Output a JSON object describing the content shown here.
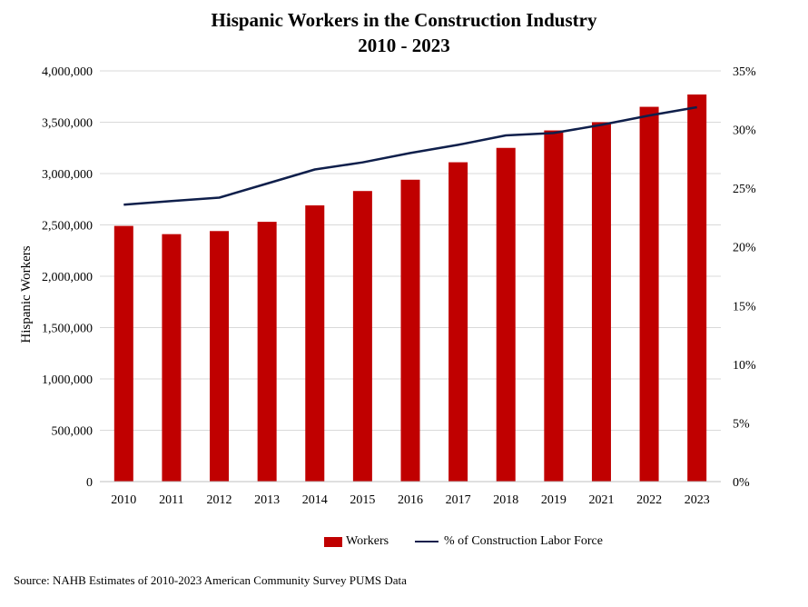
{
  "chart_data": {
    "type": "bar",
    "title": "Hispanic Workers in the Construction Industry",
    "subtitle": "2010 - 2023",
    "ylabel": "Hispanic Workers",
    "ylim": [
      0,
      4000000
    ],
    "y_ticks": [
      "0",
      "500,000",
      "1,000,000",
      "1,500,000",
      "2,000,000",
      "2,500,000",
      "3,000,000",
      "3,500,000",
      "4,000,000"
    ],
    "y2lim": [
      0,
      35
    ],
    "y2_ticks": [
      "0%",
      "5%",
      "10%",
      "15%",
      "20%",
      "25%",
      "30%",
      "35%"
    ],
    "categories": [
      "2010",
      "2011",
      "2012",
      "2013",
      "2014",
      "2015",
      "2016",
      "2017",
      "2018",
      "2019",
      "2021",
      "2022",
      "2023"
    ],
    "series": [
      {
        "name": "Workers",
        "type": "bar",
        "axis": "left",
        "color": "#c00000",
        "values": [
          2490000,
          2410000,
          2440000,
          2530000,
          2690000,
          2830000,
          2940000,
          3110000,
          3250000,
          3420000,
          3500000,
          3650000,
          3770000
        ]
      },
      {
        "name": "% of Construction Labor Force",
        "type": "line",
        "axis": "right",
        "color": "#0f1f4b",
        "values": [
          23.6,
          23.9,
          24.2,
          25.4,
          26.6,
          27.2,
          28.0,
          28.7,
          29.5,
          29.7,
          30.4,
          31.2,
          31.9
        ]
      }
    ],
    "grid": true,
    "legend_position": "bottom"
  },
  "source": "Source: NAHB Estimates of 2010-2023 American Community Survey PUMS Data"
}
